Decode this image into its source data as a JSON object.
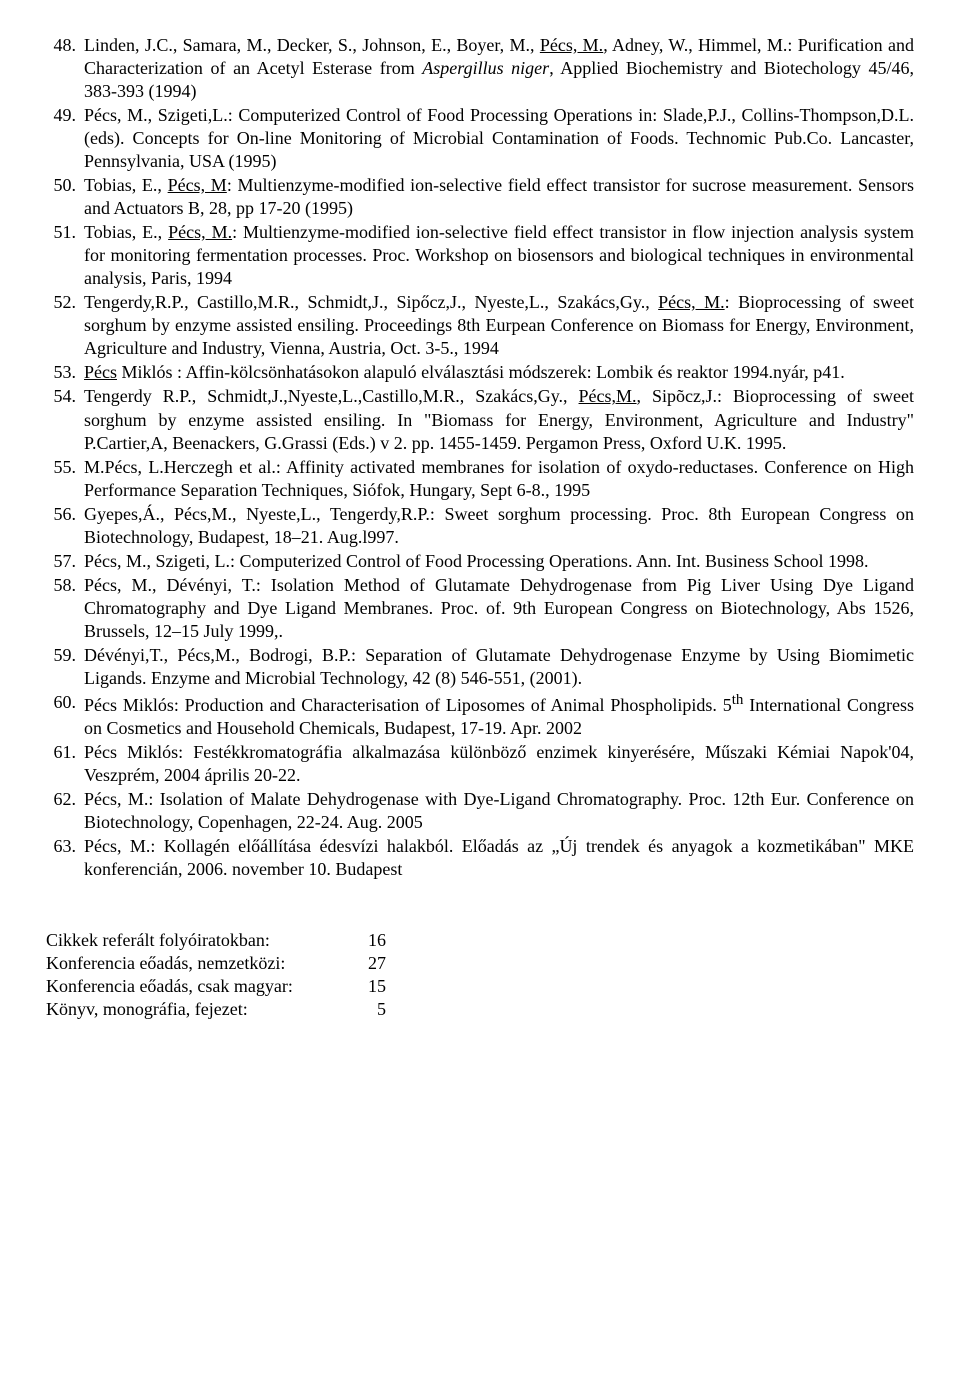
{
  "references": [
    {
      "n": "48.",
      "html": "Linden, J.C., Samara, M., Decker, S., Johnson, E., Boyer, M., <u>Pécs, M.</u>, Adney, W., Himmel, M.: Purification and Characterization of an Acetyl Esterase from <em>Aspergillus niger</em>, Applied Biochemistry and Biotechology 45/46, 383-393 (1994)"
    },
    {
      "n": "49.",
      "html": "Pécs, M., Szigeti,L.: Computerized Control of Food Processing Operations in: Slade,P.J., Collins-Thompson,D.L. (eds). Concepts for On-line Monitoring of Microbial Contamination of Foods. Technomic Pub.Co. Lancaster, Pennsylvania, USA (1995)"
    },
    {
      "n": "50.",
      "html": "Tobias, E., <u>Pécs, M</u>: Multienzyme-modified ion-selective field effect transistor for sucrose measurement. Sensors and Actuators B, 28, pp 17-20 (1995)"
    },
    {
      "n": "51.",
      "html": "Tobias, E., <u>Pécs, M.</u>: Multienzyme-modified ion-selective field effect transistor in flow injection analysis system for monitoring fermentation processes. Proc. Workshop on biosensors and biological techniques in environmental analysis, Paris, 1994"
    },
    {
      "n": "52.",
      "html": "Tengerdy,R.P., Castillo,M.R., Schmidt,J., Sipőcz,J., Nyeste,L., Szakács,Gy., <u>Pécs, M.</u>: Bioprocessing of sweet sorghum by enzyme assisted ensiling. Proceedings 8th Eurpean Conference on Biomass for Energy, Environment, Agriculture and Industry, Vienna, Austria, Oct. 3-5., 1994"
    },
    {
      "n": "53.",
      "html": "<u>Pécs</u> Miklós : Affin-kölcsönhatásokon alapuló elválasztási módszerek: Lombik és reaktor 1994.nyár, p41."
    },
    {
      "n": "54.",
      "html": "Tengerdy R.P., Schmidt,J.,Nyeste,L.,Castillo,M.R., Szakács,Gy., <u>Pécs,M.</u>, Sipõcz,J.: Bioprocessing of sweet sorghum by enzyme assisted ensiling. In \"Biomass for Energy, Environment, Agriculture and Industry\" P.Cartier,A, Beenackers, G.Grassi (Eds.) v 2. pp. 1455-1459. Pergamon Press, Oxford U.K. 1995."
    },
    {
      "n": "55.",
      "html": "M.Pécs, L.Herczegh et al.: Affinity activated membranes for isolation of oxydo-reductases. Conference on High Performance Separation Techniques, Siófok, Hungary, Sept 6-8., 1995"
    },
    {
      "n": "56.",
      "html": "Gyepes,Á., Pécs,M., Nyeste,L., Tengerdy,R.P.: Sweet sorghum processing. Proc. 8th European Congress on Biotechnology, Budapest, 18–21. Aug.l997."
    },
    {
      "n": "57.",
      "html": "Pécs, M., Szigeti, L.: Computerized Control of Food Processing Operations. Ann. Int. Business School 1998."
    },
    {
      "n": "58.",
      "html": "Pécs, M., Dévényi, T.: Isolation Method of Glutamate Dehydrogenase from Pig Liver Using Dye Ligand Chromatography and Dye Ligand Membranes. Proc. of. 9th European Congress on Biotechnology, Abs 1526, Brussels, 12–15 July 1999,."
    },
    {
      "n": "59.",
      "html": "Dévényi,T., Pécs,M., Bodrogi, B.P.: Separation of Glutamate Dehydrogenase Enzyme by Using Biomimetic Ligands. Enzyme and Microbial Technology, 42 (8) 546-551, (2001)."
    },
    {
      "n": "60.",
      "html": "Pécs Miklós: Production and Characterisation of Liposomes of Animal Phospholipids. 5<sup>th</sup> International Congress on Cosmetics and Household Chemicals, Budapest, 17-19. Apr. 2002"
    },
    {
      "n": "61.",
      "html": "Pécs Miklós: Festékkromatográfia alkalmazása különböző enzimek kinyerésére, Műszaki Kémiai Napok'04, Veszprém, 2004 április 20-22."
    },
    {
      "n": "62.",
      "html": "Pécs, M.: Isolation of Malate Dehydrogenase with Dye-Ligand Chromatography. Proc. 12th Eur. Conference on Biotechnology, Copenhagen, 22-24. Aug. 2005"
    },
    {
      "n": "63.",
      "html": "Pécs, M.: Kollagén előállítása édesvízi halakból. Előadás az „Új trendek és anyagok a kozmetikában\" MKE konferencián, 2006. november 10. Budapest"
    }
  ],
  "summary": [
    {
      "label": "Cikkek referált folyóiratokban:",
      "value": "16"
    },
    {
      "label": "Konferencia eőadás, nemzetközi:",
      "value": "27"
    },
    {
      "label": "Konferencia eőadás, csak magyar:",
      "value": "15"
    },
    {
      "label": "Könyv, monográfia, fejezet:",
      "value": "5"
    }
  ]
}
